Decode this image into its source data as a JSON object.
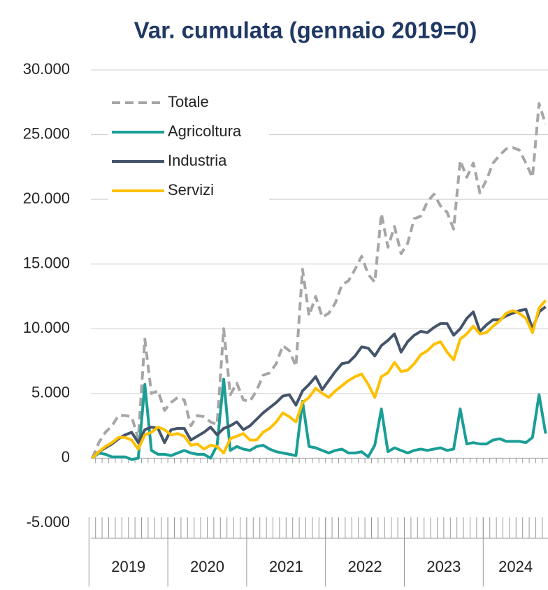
{
  "chart_data": {
    "type": "line",
    "title": "Var. cumulata (gennaio 2019=0)",
    "categories": [
      null,
      null,
      null,
      null,
      null,
      null,
      null,
      null,
      null,
      null,
      null,
      null,
      null,
      null,
      null,
      null,
      null,
      null,
      null,
      null,
      null,
      null,
      null,
      null,
      null,
      null,
      null,
      null,
      null,
      null,
      null,
      null,
      null,
      null,
      null,
      null,
      null,
      null,
      null,
      null,
      null,
      null,
      null,
      null,
      null,
      null,
      null,
      null,
      null,
      null,
      null,
      null,
      null,
      null,
      null,
      null,
      null,
      null,
      null,
      null,
      null,
      null,
      null,
      null,
      null,
      null,
      null,
      null,
      null,
      null
    ],
    "x_groups": [
      "2019",
      "2020",
      "2021",
      "2022",
      "2023",
      "2024"
    ],
    "ylim": [
      -5000,
      30000
    ],
    "yticks": [
      {
        "value": -5000,
        "label": "-5.000"
      },
      0,
      {
        "value": 5000,
        "label": "5.000"
      },
      {
        "value": 10000,
        "label": "10.000"
      },
      {
        "value": 15000,
        "label": "15.000"
      },
      {
        "value": 20000,
        "label": "20.000"
      },
      {
        "value": 25000,
        "label": "25.000"
      },
      {
        "value": 30000,
        "label": "30.000"
      }
    ],
    "grid": true,
    "legend": "top-left",
    "series": [
      {
        "name": "Totale",
        "color": "#a6a6a6",
        "dash": true,
        "values": [
          0,
          1200,
          2000,
          2500,
          3300,
          3300,
          3200,
          1500,
          9200,
          5000,
          5200,
          3700,
          4300,
          4700,
          4500,
          2500,
          3300,
          3200,
          2800,
          2600,
          10000,
          4900,
          5800,
          4500,
          4400,
          5200,
          6400,
          6600,
          7300,
          8700,
          8300,
          7100,
          14600,
          11000,
          12500,
          10900,
          11200,
          12000,
          13400,
          13700,
          14600,
          15600,
          14200,
          13600,
          18900,
          16300,
          17900,
          15800,
          16600,
          18500,
          18700,
          19800,
          20400,
          19500,
          19000,
          17700,
          23000,
          21700,
          22800,
          20500,
          21500,
          22800,
          23400,
          23900,
          24000,
          23800,
          22800,
          21700,
          27400,
          25800
        ]
      },
      {
        "name": "Agricoltura",
        "color": "#1a9e96",
        "values": [
          0,
          400,
          300,
          100,
          100,
          100,
          -100,
          0,
          5700,
          600,
          300,
          300,
          200,
          400,
          600,
          400,
          300,
          300,
          0,
          1000,
          6100,
          600,
          900,
          700,
          600,
          900,
          1000,
          700,
          500,
          400,
          300,
          200,
          4400,
          900,
          800,
          600,
          400,
          600,
          700,
          400,
          400,
          500,
          100,
          1000,
          3800,
          500,
          800,
          600,
          400,
          600,
          700,
          600,
          700,
          800,
          600,
          700,
          3800,
          1100,
          1200,
          1100,
          1100,
          1400,
          1500,
          1300,
          1300,
          1300,
          1200,
          1600,
          4900,
          1900
        ]
      },
      {
        "name": "Industria",
        "color": "#44546a",
        "values": [
          0,
          500,
          800,
          1100,
          1500,
          1800,
          2000,
          1200,
          2200,
          2400,
          2300,
          1200,
          2200,
          2300,
          2300,
          1400,
          1700,
          2000,
          2400,
          1800,
          2300,
          2500,
          2800,
          2200,
          2500,
          3000,
          3500,
          3900,
          4300,
          4800,
          4900,
          4100,
          5200,
          5700,
          6300,
          5300,
          6000,
          6700,
          7300,
          7400,
          7900,
          8600,
          8500,
          7900,
          8700,
          9100,
          9600,
          8200,
          9000,
          9500,
          9800,
          9700,
          10100,
          10400,
          10400,
          9500,
          10000,
          10800,
          11300,
          9800,
          10300,
          10700,
          10700,
          11000,
          11200,
          11400,
          11500,
          10000,
          11300,
          11700
        ]
      },
      {
        "name": "Servizi",
        "color": "#ffc000",
        "values": [
          0,
          500,
          900,
          1200,
          1600,
          1600,
          1400,
          700,
          1800,
          2000,
          2400,
          2200,
          1800,
          1900,
          1700,
          1000,
          1100,
          700,
          1000,
          900,
          400,
          1500,
          1700,
          1900,
          1400,
          1400,
          2000,
          2300,
          2800,
          3500,
          3200,
          2800,
          4300,
          4700,
          5400,
          5000,
          4700,
          5200,
          5600,
          6000,
          6300,
          6500,
          5700,
          4700,
          6300,
          6600,
          7400,
          6700,
          6800,
          7300,
          8000,
          8300,
          8800,
          9000,
          8200,
          7600,
          9200,
          9600,
          10200,
          9600,
          9700,
          10200,
          10600,
          11200,
          11400,
          11200,
          10800,
          9700,
          11600,
          12200
        ]
      }
    ]
  }
}
